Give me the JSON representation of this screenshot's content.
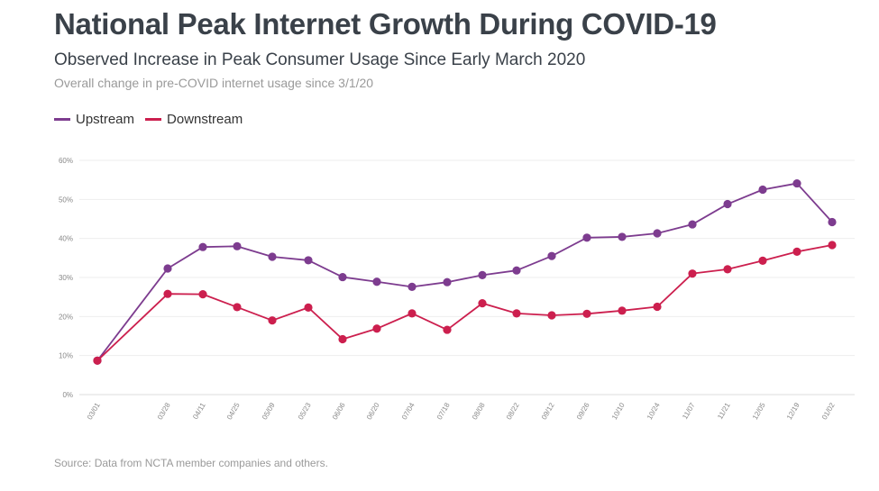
{
  "title": "National Peak Internet Growth During COVID-19",
  "subtitle": "Observed Increase in Peak Consumer Usage Since Early March 2020",
  "note": "Overall change in pre-COVID internet usage since 3/1/20",
  "source": "Source: Data from NCTA member companies and others.",
  "colors": {
    "upstream": "#7d3c8f",
    "downstream": "#cc1f4e",
    "grid": "#eeeeee",
    "text": "#3a4149"
  },
  "chart_data": {
    "type": "line",
    "title": "National Peak Internet Growth During COVID-19",
    "subtitle": "Observed Increase in Peak Consumer Usage Since Early March 2020",
    "xlabel": "",
    "ylabel": "",
    "ylim": [
      0,
      60
    ],
    "yticks": [
      0,
      10,
      20,
      30,
      40,
      50,
      60
    ],
    "ytick_labels": [
      "0%",
      "10%",
      "20%",
      "30%",
      "40%",
      "50%",
      "60%"
    ],
    "grid": true,
    "legend_position": "top-left",
    "categories": [
      "03/01",
      "03/28",
      "04/11",
      "04/25",
      "05/09",
      "05/23",
      "06/06",
      "06/20",
      "07/04",
      "07/18",
      "08/08",
      "08/22",
      "09/12",
      "09/26",
      "10/10",
      "10/24",
      "11/07",
      "11/21",
      "12/05",
      "12/19",
      "01/02"
    ],
    "series": [
      {
        "name": "Upstream",
        "color": "#7d3c8f",
        "values": [
          8.7,
          32.3,
          37.8,
          38.0,
          35.3,
          34.4,
          30.1,
          28.9,
          27.6,
          28.8,
          30.6,
          31.8,
          35.5,
          40.2,
          40.4,
          41.3,
          43.6,
          48.8,
          52.5,
          54.1,
          44.2
        ]
      },
      {
        "name": "Downstream",
        "color": "#cc1f4e",
        "values": [
          8.7,
          25.8,
          25.7,
          22.4,
          19.0,
          22.3,
          14.2,
          16.9,
          20.8,
          16.6,
          23.4,
          20.8,
          20.3,
          20.7,
          21.5,
          22.5,
          31.0,
          32.1,
          34.3,
          36.6,
          38.3
        ]
      }
    ]
  }
}
